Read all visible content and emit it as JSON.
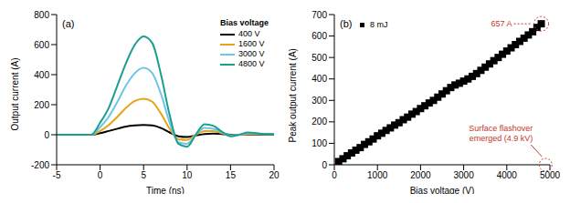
{
  "chart_data": [
    {
      "type": "line",
      "title": "(a)",
      "x_label": "Time (ns)",
      "y_label": "Output current (A)",
      "legend_title": "Bias voltage",
      "legend": "upper right",
      "grid": false,
      "xlim": [
        -5,
        20
      ],
      "xticks": [
        -5,
        0,
        5,
        10,
        15,
        20
      ],
      "ylim": [
        -200,
        800
      ],
      "yticks": [
        -200,
        0,
        200,
        400,
        600,
        800
      ],
      "x": [
        -5,
        -4,
        -3,
        -2,
        -1,
        0,
        1,
        2,
        3,
        4,
        5,
        6,
        7,
        8,
        9,
        10,
        11,
        12,
        13,
        14,
        15,
        16,
        17,
        18,
        19,
        20
      ],
      "series": [
        {
          "name": "400 V",
          "color": "#000000",
          "line_style": "solid",
          "values": [
            0,
            0,
            0,
            0,
            0,
            10,
            25,
            40,
            55,
            62,
            65,
            62,
            45,
            15,
            -10,
            -15,
            -5,
            5,
            8,
            5,
            0,
            0,
            2,
            2,
            0,
            0
          ]
        },
        {
          "name": "1600 V",
          "color": "#e8a317",
          "line_style": "solid",
          "values": [
            0,
            0,
            0,
            0,
            0,
            25,
            65,
            120,
            180,
            225,
            240,
            220,
            140,
            40,
            -30,
            -35,
            0,
            25,
            25,
            10,
            -5,
            0,
            5,
            5,
            3,
            3
          ]
        },
        {
          "name": "3000 V",
          "color": "#6ec6e6",
          "line_style": "solid",
          "values": [
            0,
            0,
            0,
            0,
            0,
            50,
            120,
            220,
            330,
            410,
            445,
            410,
            270,
            80,
            -50,
            -60,
            0,
            45,
            40,
            15,
            -5,
            0,
            10,
            8,
            5,
            5
          ]
        },
        {
          "name": "4800 V",
          "color": "#1a9e8f",
          "line_style": "solid",
          "values": [
            0,
            0,
            0,
            0,
            0,
            80,
            180,
            330,
            480,
            600,
            655,
            610,
            400,
            130,
            -60,
            -80,
            0,
            70,
            60,
            20,
            -10,
            0,
            15,
            10,
            5,
            5
          ]
        }
      ]
    },
    {
      "type": "scatter",
      "title": "(b)",
      "x_label": "Bias voltage (V)",
      "y_label": "Peak output current (A)",
      "legend": "upper left",
      "grid": false,
      "xlim": [
        0,
        5000
      ],
      "xticks": [
        0,
        1000,
        2000,
        3000,
        4000,
        5000
      ],
      "ylim": [
        0,
        700
      ],
      "yticks": [
        0,
        100,
        200,
        300,
        400,
        500,
        600,
        700
      ],
      "x": [
        100,
        200,
        300,
        400,
        500,
        600,
        700,
        800,
        900,
        1000,
        1100,
        1200,
        1300,
        1400,
        1500,
        1600,
        1700,
        1800,
        1900,
        2000,
        2100,
        2200,
        2300,
        2400,
        2500,
        2600,
        2700,
        2800,
        2900,
        3000,
        3100,
        3200,
        3300,
        3400,
        3500,
        3600,
        3700,
        3800,
        3900,
        4000,
        4100,
        4200,
        4300,
        4400,
        4500,
        4600,
        4700,
        4800
      ],
      "series": [
        {
          "name": "8 mJ",
          "color": "#000000",
          "marker": "square",
          "values": [
            15,
            28,
            42,
            55,
            68,
            80,
            95,
            107,
            120,
            135,
            147,
            160,
            172,
            185,
            196,
            210,
            222,
            236,
            248,
            262,
            275,
            288,
            300,
            315,
            330,
            345,
            360,
            372,
            380,
            390,
            400,
            412,
            425,
            440,
            455,
            470,
            485,
            500,
            515,
            530,
            545,
            560,
            575,
            590,
            605,
            620,
            640,
            657
          ]
        }
      ],
      "annotations": [
        {
          "text": "657 A",
          "x": 4800,
          "y": 657,
          "color": "#c0392b"
        },
        {
          "text": "Surface flashover\nemerged (4.9 kV)",
          "x": 4900,
          "y": 0,
          "color": "#c0392b"
        }
      ]
    }
  ]
}
